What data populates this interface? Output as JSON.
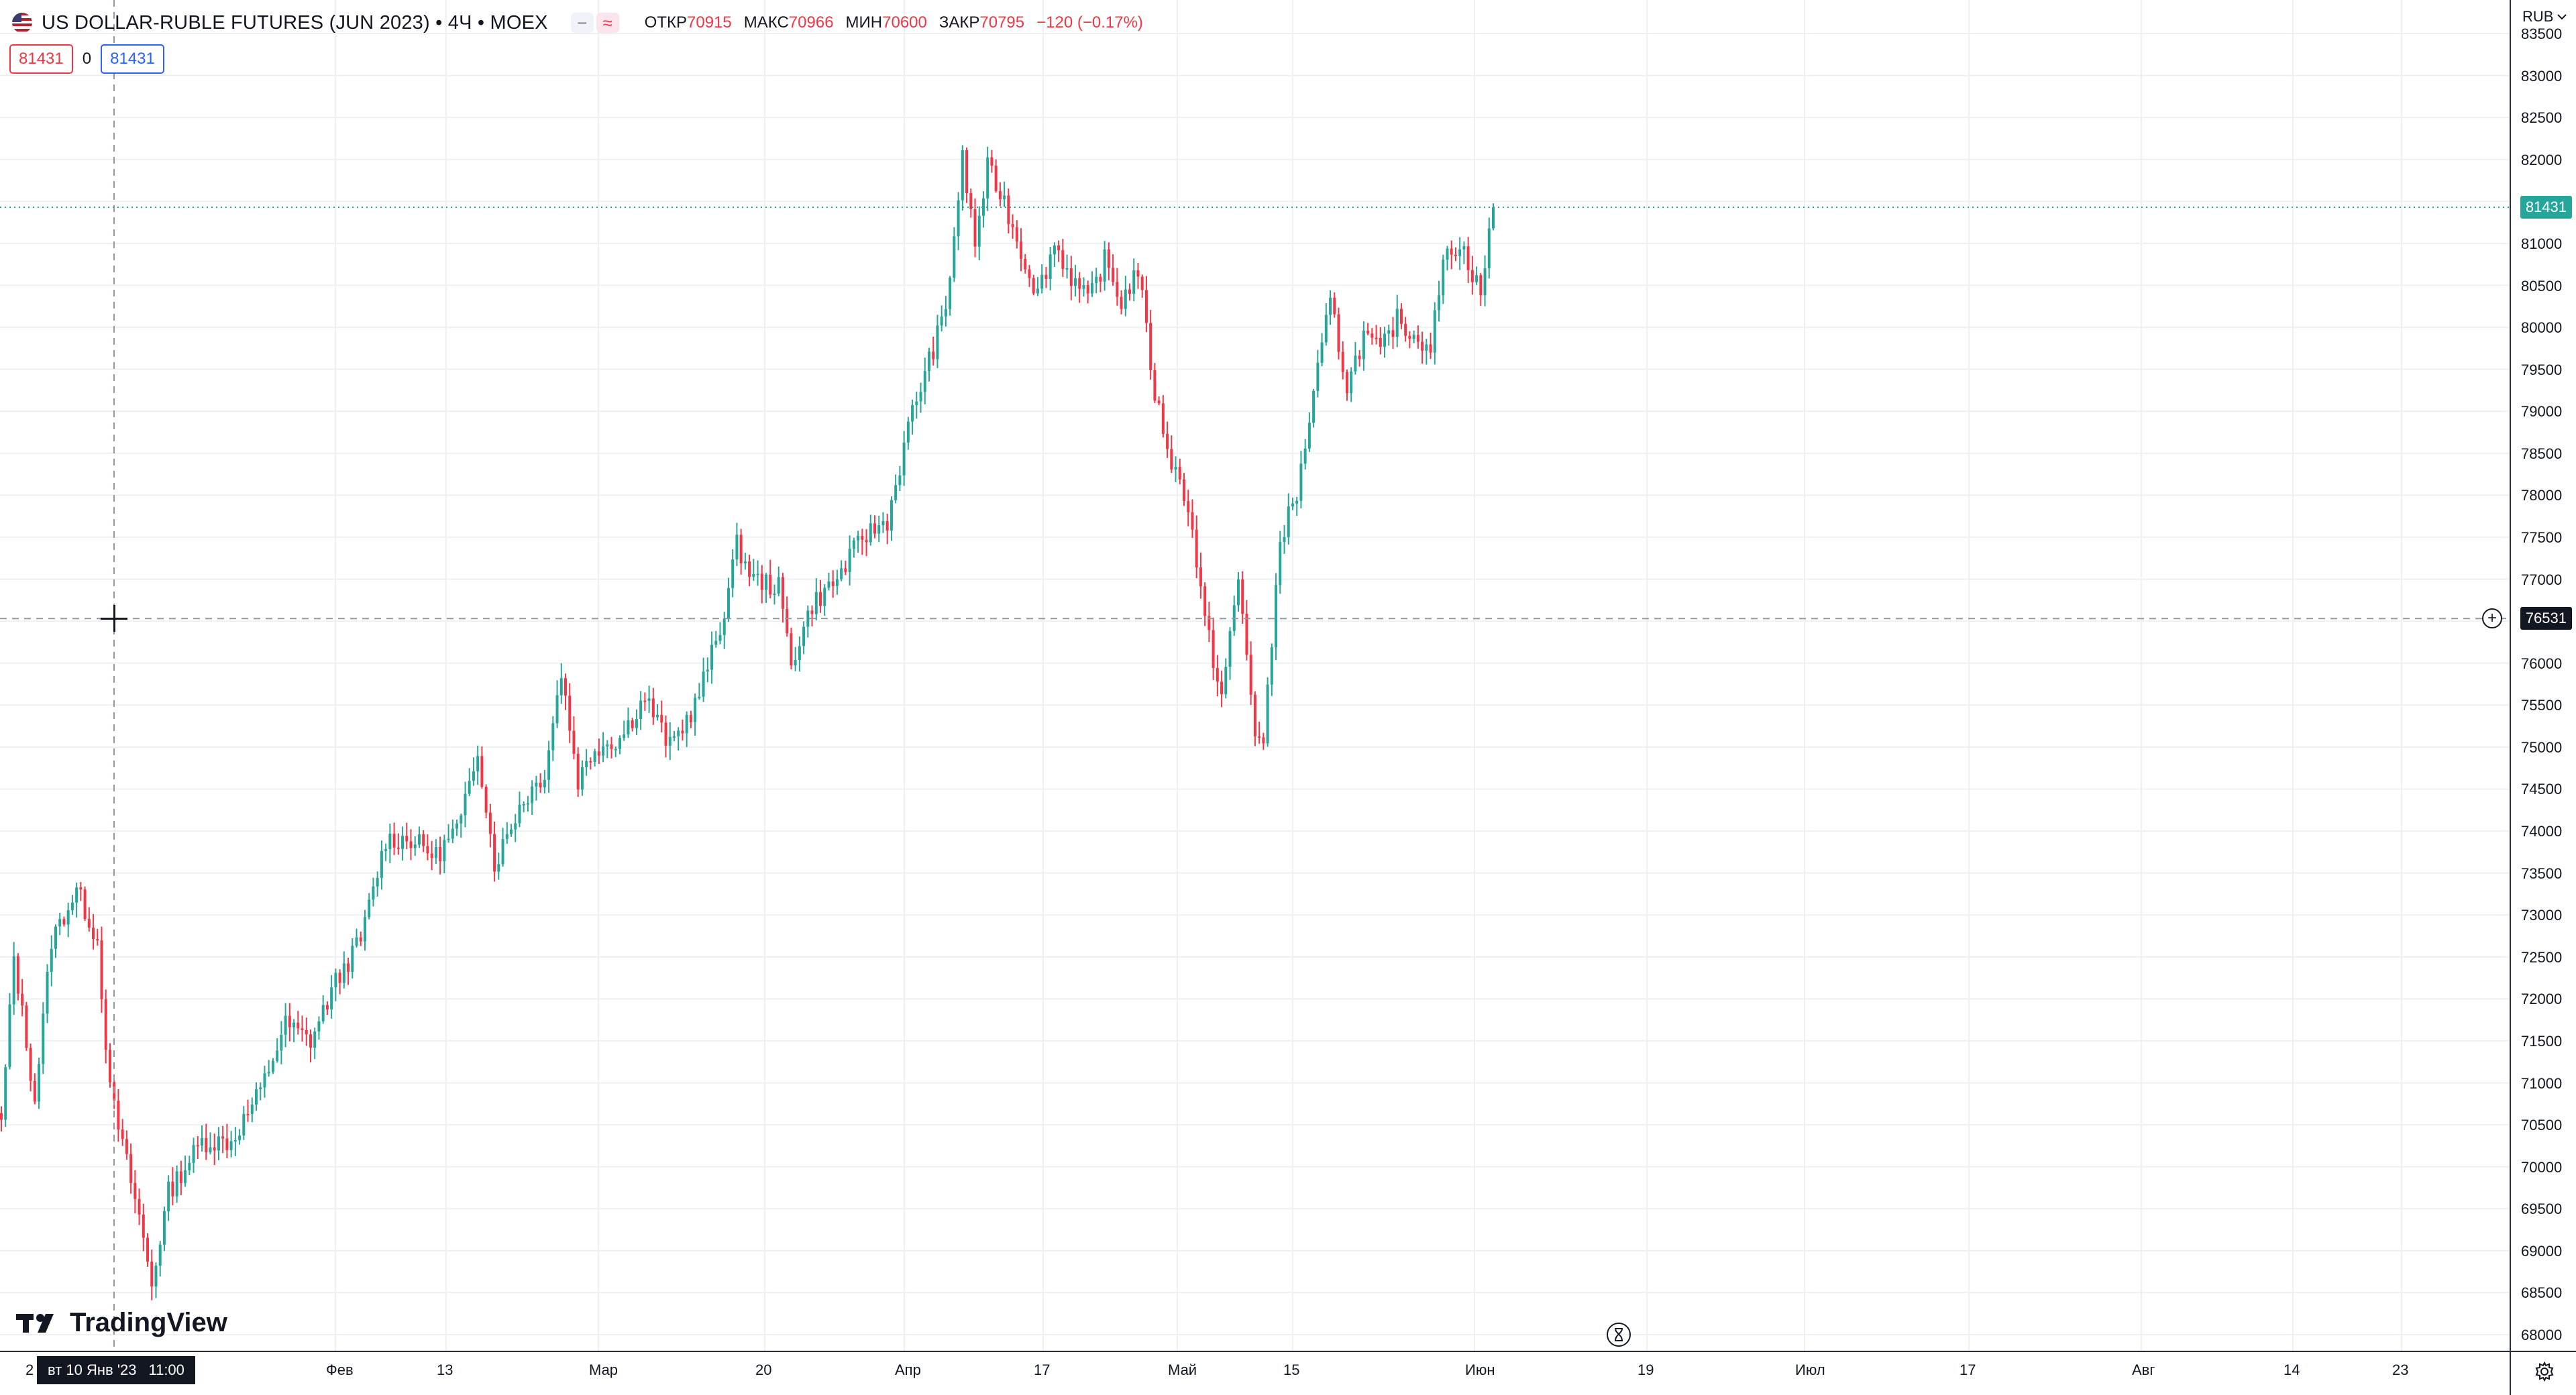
{
  "header": {
    "symbol_title": "US DOLLAR-RUBLE FUTURES (JUN 2023) • 4Ч • MOEX",
    "ind_btn_1": "−",
    "ind_btn_2": "≈",
    "ohlc": {
      "open_label": "ОТКР",
      "open_value": "70915",
      "high_label": "МАКС",
      "high_value": "70966",
      "low_label": "МИН",
      "low_value": "70600",
      "close_label": "ЗАКР",
      "close_value": "70795",
      "change": "−120 (−0.17%)"
    }
  },
  "trade_badges": {
    "sell_price": "81431",
    "spread": "0",
    "buy_price": "81431"
  },
  "price_axis": {
    "currency": "RUB",
    "ticks": [
      "83500",
      "83000",
      "82500",
      "82000",
      "81500",
      "81000",
      "80500",
      "80000",
      "79500",
      "79000",
      "78500",
      "78000",
      "77500",
      "77000",
      "76500",
      "76000",
      "75500",
      "75000",
      "74500",
      "74000",
      "73500",
      "73000",
      "72500",
      "72000",
      "71500",
      "71000",
      "70500",
      "70000",
      "69500",
      "69000",
      "68500",
      "68000"
    ],
    "current_price_label": "81431",
    "crosshair_price_label": "76531"
  },
  "time_axis": {
    "crosshair_date_label": "вт 10 Янв '23",
    "crosshair_time_label": "11:00",
    "labels": [
      "Фев",
      "13",
      "Мар",
      "20",
      "Апр",
      "17",
      "Май",
      "15",
      "Июн",
      "19",
      "Июл",
      "17",
      "Авг",
      "14",
      "23"
    ],
    "left_stub": "2"
  },
  "branding": {
    "logo_text": "TradingView"
  },
  "colors": {
    "up": "#26a69a",
    "down": "#f23645",
    "grid": "#eef0f3",
    "crosshair": "#9598a1",
    "text": "#131722"
  },
  "chart_data": {
    "type": "candlestick",
    "title": "US DOLLAR-RUBLE FUTURES (JUN 2023) • 4Ч • MOEX",
    "ylabel": "RUB",
    "ylim": [
      67800,
      83900
    ],
    "last_price": 81431,
    "crosshair_price": 76531,
    "waypoints": [
      {
        "i": 0,
        "p": 70500
      },
      {
        "i": 3,
        "p": 72500
      },
      {
        "i": 8,
        "p": 70800
      },
      {
        "i": 12,
        "p": 72700
      },
      {
        "i": 18,
        "p": 73300
      },
      {
        "i": 23,
        "p": 72700
      },
      {
        "i": 26,
        "p": 70900
      },
      {
        "i": 33,
        "p": 69400
      },
      {
        "i": 36,
        "p": 68600
      },
      {
        "i": 40,
        "p": 69700
      },
      {
        "i": 48,
        "p": 70300
      },
      {
        "i": 55,
        "p": 70300
      },
      {
        "i": 62,
        "p": 70900
      },
      {
        "i": 68,
        "p": 71700
      },
      {
        "i": 74,
        "p": 71500
      },
      {
        "i": 80,
        "p": 72200
      },
      {
        "i": 86,
        "p": 72700
      },
      {
        "i": 92,
        "p": 73900
      },
      {
        "i": 98,
        "p": 73900
      },
      {
        "i": 104,
        "p": 73700
      },
      {
        "i": 110,
        "p": 74100
      },
      {
        "i": 114,
        "p": 75000
      },
      {
        "i": 118,
        "p": 73600
      },
      {
        "i": 124,
        "p": 74300
      },
      {
        "i": 130,
        "p": 74700
      },
      {
        "i": 134,
        "p": 75900
      },
      {
        "i": 138,
        "p": 74600
      },
      {
        "i": 142,
        "p": 75000
      },
      {
        "i": 148,
        "p": 75100
      },
      {
        "i": 154,
        "p": 75600
      },
      {
        "i": 160,
        "p": 75000
      },
      {
        "i": 166,
        "p": 75500
      },
      {
        "i": 172,
        "p": 76400
      },
      {
        "i": 176,
        "p": 77400
      },
      {
        "i": 180,
        "p": 77000
      },
      {
        "i": 186,
        "p": 76900
      },
      {
        "i": 189,
        "p": 76000
      },
      {
        "i": 194,
        "p": 76700
      },
      {
        "i": 200,
        "p": 77000
      },
      {
        "i": 206,
        "p": 77500
      },
      {
        "i": 212,
        "p": 77700
      },
      {
        "i": 218,
        "p": 79000
      },
      {
        "i": 222,
        "p": 79600
      },
      {
        "i": 226,
        "p": 80200
      },
      {
        "i": 230,
        "p": 82000
      },
      {
        "i": 233,
        "p": 81000
      },
      {
        "i": 236,
        "p": 81900
      },
      {
        "i": 240,
        "p": 81500
      },
      {
        "i": 244,
        "p": 80900
      },
      {
        "i": 248,
        "p": 80400
      },
      {
        "i": 252,
        "p": 81000
      },
      {
        "i": 256,
        "p": 80600
      },
      {
        "i": 260,
        "p": 80300
      },
      {
        "i": 264,
        "p": 80800
      },
      {
        "i": 268,
        "p": 80300
      },
      {
        "i": 272,
        "p": 80700
      },
      {
        "i": 276,
        "p": 79200
      },
      {
        "i": 280,
        "p": 78400
      },
      {
        "i": 284,
        "p": 77900
      },
      {
        "i": 288,
        "p": 76500
      },
      {
        "i": 292,
        "p": 75600
      },
      {
        "i": 296,
        "p": 77000
      },
      {
        "i": 300,
        "p": 75200
      },
      {
        "i": 302,
        "p": 75000
      },
      {
        "i": 306,
        "p": 77500
      },
      {
        "i": 310,
        "p": 78000
      },
      {
        "i": 314,
        "p": 79200
      },
      {
        "i": 318,
        "p": 80300
      },
      {
        "i": 322,
        "p": 79300
      },
      {
        "i": 326,
        "p": 79900
      },
      {
        "i": 330,
        "p": 79700
      },
      {
        "i": 334,
        "p": 80100
      },
      {
        "i": 338,
        "p": 79900
      },
      {
        "i": 342,
        "p": 79800
      },
      {
        "i": 346,
        "p": 81000
      },
      {
        "i": 350,
        "p": 80900
      },
      {
        "i": 354,
        "p": 80400
      },
      {
        "i": 357,
        "p": 81431
      }
    ]
  }
}
